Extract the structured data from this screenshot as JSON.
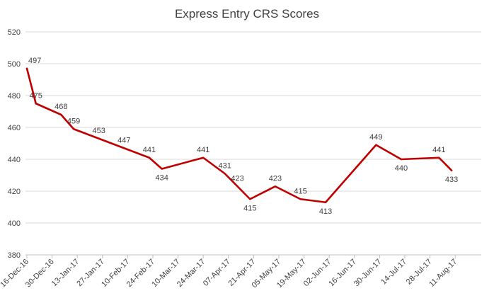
{
  "chart_data": {
    "type": "line",
    "title": "Express Entry CRS Scores",
    "xlabel": "",
    "ylabel": "",
    "ylim": [
      380,
      520
    ],
    "yticks": [
      380,
      400,
      420,
      440,
      460,
      480,
      500,
      520
    ],
    "grid": true,
    "legend": "none",
    "line_color": "#c00000",
    "categories": [
      "16-Dec-16",
      "30-Dec-16",
      "13-Jan-17",
      "27-Jan-17",
      "10-Feb-17",
      "24-Feb-17",
      "10-Mar-17",
      "24-Mar-17",
      "07-Apr-17",
      "21-Apr-17",
      "05-May-17",
      "19-May-17",
      "02-Jun-17",
      "16-Jun-17",
      "30-Jun-17",
      "14-Jul-17",
      "28-Jul-17",
      "11-Aug-17"
    ],
    "points": [
      {
        "x": "16-Dec-16",
        "y": 497
      },
      {
        "x": "21-Dec-16",
        "y": 475
      },
      {
        "x": "04-Jan-17",
        "y": 468
      },
      {
        "x": "11-Jan-17",
        "y": 459
      },
      {
        "x": "25-Jan-17",
        "y": 453
      },
      {
        "x": "08-Feb-17",
        "y": 447
      },
      {
        "x": "22-Feb-17",
        "y": 441
      },
      {
        "x": "01-Mar-17",
        "y": 434
      },
      {
        "x": "24-Mar-17",
        "y": 441
      },
      {
        "x": "05-Apr-17",
        "y": 431
      },
      {
        "x": "12-Apr-17",
        "y": 423
      },
      {
        "x": "19-Apr-17",
        "y": 415
      },
      {
        "x": "03-May-17",
        "y": 423
      },
      {
        "x": "17-May-17",
        "y": 415
      },
      {
        "x": "31-May-17",
        "y": 413
      },
      {
        "x": "28-Jun-17",
        "y": 449
      },
      {
        "x": "12-Jul-17",
        "y": 440
      },
      {
        "x": "02-Aug-17",
        "y": 441
      },
      {
        "x": "09-Aug-17",
        "y": 433
      }
    ]
  }
}
